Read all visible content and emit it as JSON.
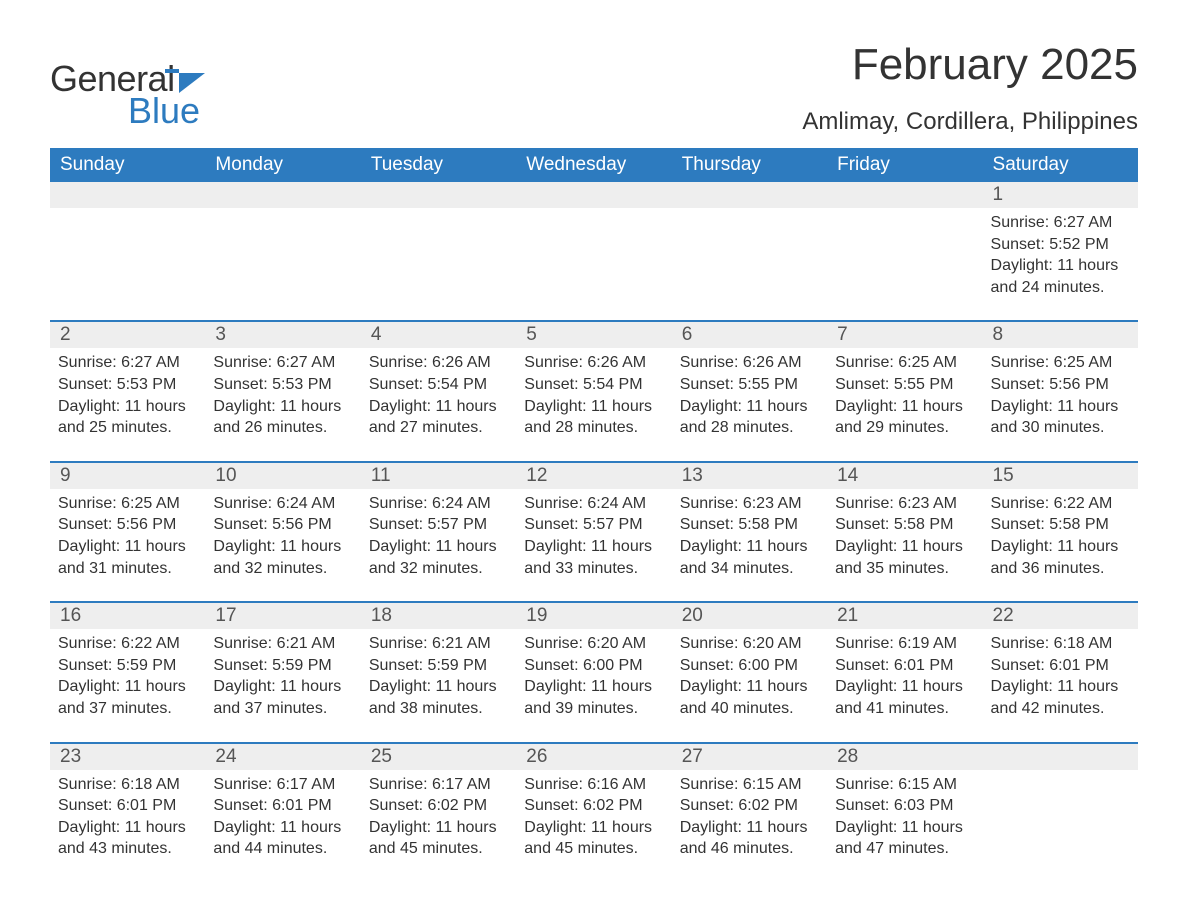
{
  "brand": {
    "part1": "General",
    "part2": "Blue",
    "accent_color": "#2d7bbf"
  },
  "title": "February 2025",
  "location": "Amlimay, Cordillera, Philippines",
  "theme": {
    "header_bg": "#2d7bbf",
    "header_text": "#ffffff",
    "daynum_bg": "#eeeeee",
    "body_text": "#333333",
    "page_bg": "#ffffff",
    "title_fontsize": 44,
    "location_fontsize": 24,
    "dayheader_fontsize": 19,
    "body_fontsize": 16
  },
  "day_labels": [
    "Sunday",
    "Monday",
    "Tuesday",
    "Wednesday",
    "Thursday",
    "Friday",
    "Saturday"
  ],
  "weeks": [
    [
      null,
      null,
      null,
      null,
      null,
      null,
      {
        "d": "1",
        "sr": "6:27 AM",
        "ss": "5:52 PM",
        "dl": "11 hours and 24 minutes."
      }
    ],
    [
      {
        "d": "2",
        "sr": "6:27 AM",
        "ss": "5:53 PM",
        "dl": "11 hours and 25 minutes."
      },
      {
        "d": "3",
        "sr": "6:27 AM",
        "ss": "5:53 PM",
        "dl": "11 hours and 26 minutes."
      },
      {
        "d": "4",
        "sr": "6:26 AM",
        "ss": "5:54 PM",
        "dl": "11 hours and 27 minutes."
      },
      {
        "d": "5",
        "sr": "6:26 AM",
        "ss": "5:54 PM",
        "dl": "11 hours and 28 minutes."
      },
      {
        "d": "6",
        "sr": "6:26 AM",
        "ss": "5:55 PM",
        "dl": "11 hours and 28 minutes."
      },
      {
        "d": "7",
        "sr": "6:25 AM",
        "ss": "5:55 PM",
        "dl": "11 hours and 29 minutes."
      },
      {
        "d": "8",
        "sr": "6:25 AM",
        "ss": "5:56 PM",
        "dl": "11 hours and 30 minutes."
      }
    ],
    [
      {
        "d": "9",
        "sr": "6:25 AM",
        "ss": "5:56 PM",
        "dl": "11 hours and 31 minutes."
      },
      {
        "d": "10",
        "sr": "6:24 AM",
        "ss": "5:56 PM",
        "dl": "11 hours and 32 minutes."
      },
      {
        "d": "11",
        "sr": "6:24 AM",
        "ss": "5:57 PM",
        "dl": "11 hours and 32 minutes."
      },
      {
        "d": "12",
        "sr": "6:24 AM",
        "ss": "5:57 PM",
        "dl": "11 hours and 33 minutes."
      },
      {
        "d": "13",
        "sr": "6:23 AM",
        "ss": "5:58 PM",
        "dl": "11 hours and 34 minutes."
      },
      {
        "d": "14",
        "sr": "6:23 AM",
        "ss": "5:58 PM",
        "dl": "11 hours and 35 minutes."
      },
      {
        "d": "15",
        "sr": "6:22 AM",
        "ss": "5:58 PM",
        "dl": "11 hours and 36 minutes."
      }
    ],
    [
      {
        "d": "16",
        "sr": "6:22 AM",
        "ss": "5:59 PM",
        "dl": "11 hours and 37 minutes."
      },
      {
        "d": "17",
        "sr": "6:21 AM",
        "ss": "5:59 PM",
        "dl": "11 hours and 37 minutes."
      },
      {
        "d": "18",
        "sr": "6:21 AM",
        "ss": "5:59 PM",
        "dl": "11 hours and 38 minutes."
      },
      {
        "d": "19",
        "sr": "6:20 AM",
        "ss": "6:00 PM",
        "dl": "11 hours and 39 minutes."
      },
      {
        "d": "20",
        "sr": "6:20 AM",
        "ss": "6:00 PM",
        "dl": "11 hours and 40 minutes."
      },
      {
        "d": "21",
        "sr": "6:19 AM",
        "ss": "6:01 PM",
        "dl": "11 hours and 41 minutes."
      },
      {
        "d": "22",
        "sr": "6:18 AM",
        "ss": "6:01 PM",
        "dl": "11 hours and 42 minutes."
      }
    ],
    [
      {
        "d": "23",
        "sr": "6:18 AM",
        "ss": "6:01 PM",
        "dl": "11 hours and 43 minutes."
      },
      {
        "d": "24",
        "sr": "6:17 AM",
        "ss": "6:01 PM",
        "dl": "11 hours and 44 minutes."
      },
      {
        "d": "25",
        "sr": "6:17 AM",
        "ss": "6:02 PM",
        "dl": "11 hours and 45 minutes."
      },
      {
        "d": "26",
        "sr": "6:16 AM",
        "ss": "6:02 PM",
        "dl": "11 hours and 45 minutes."
      },
      {
        "d": "27",
        "sr": "6:15 AM",
        "ss": "6:02 PM",
        "dl": "11 hours and 46 minutes."
      },
      {
        "d": "28",
        "sr": "6:15 AM",
        "ss": "6:03 PM",
        "dl": "11 hours and 47 minutes."
      },
      null
    ]
  ],
  "labels": {
    "sunrise": "Sunrise: ",
    "sunset": "Sunset: ",
    "daylight": "Daylight: "
  }
}
